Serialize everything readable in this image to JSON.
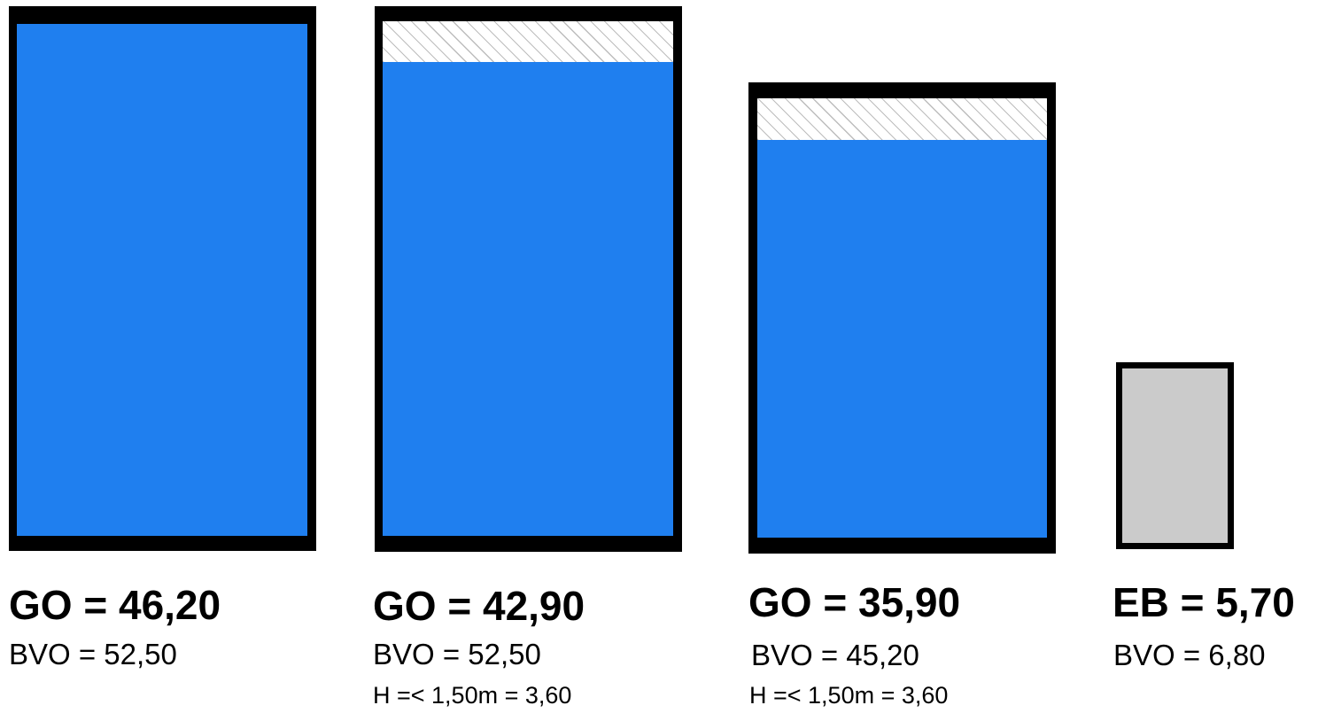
{
  "colors": {
    "usable_area": "#1f7fef",
    "outline": "#000000",
    "extra_building": "#cbcbcb",
    "low_height_hatch": "#bdbdbd"
  },
  "rooms": [
    {
      "id": "room-1",
      "main_label": "GO = 46,20",
      "sub_label": "BVO = 52,50",
      "note_label": "",
      "kind": "usable",
      "low_height_share": 0
    },
    {
      "id": "room-2",
      "main_label": "GO = 42,90",
      "sub_label": "BVO = 52,50",
      "note_label": "H =< 1,50m = 3,60",
      "kind": "usable",
      "low_height_share": 0.08
    },
    {
      "id": "room-3",
      "main_label": "GO = 35,90",
      "sub_label": "BVO = 45,20",
      "note_label": "H =< 1,50m = 3,60",
      "kind": "usable",
      "low_height_share": 0.09
    },
    {
      "id": "room-4",
      "main_label": "EB = 5,70",
      "sub_label": "BVO = 6,80",
      "note_label": "",
      "kind": "extra-building",
      "low_height_share": 0
    }
  ]
}
